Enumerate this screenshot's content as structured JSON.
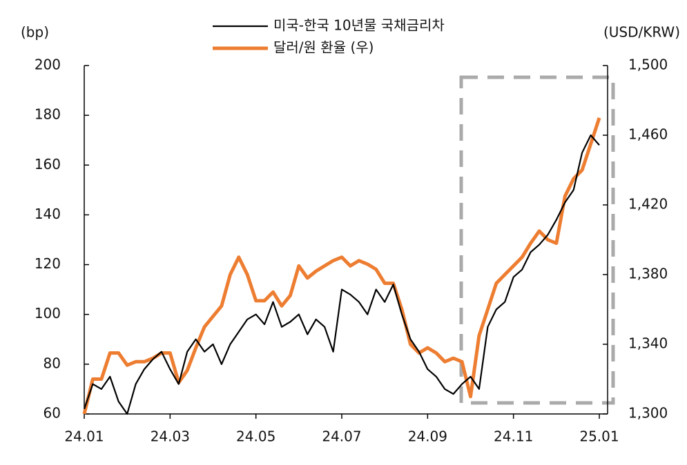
{
  "chart_data": {
    "type": "line",
    "y_label": "(bp)",
    "y2_label": "(USD/KRW)",
    "categories": [
      "24.01",
      null,
      null,
      null,
      null,
      null,
      null,
      null,
      null,
      null,
      "24.03",
      null,
      null,
      null,
      null,
      null,
      null,
      null,
      null,
      null,
      "24.05",
      null,
      null,
      null,
      null,
      null,
      null,
      null,
      null,
      null,
      "24.07",
      null,
      null,
      null,
      null,
      null,
      null,
      null,
      null,
      null,
      "24.09",
      null,
      null,
      null,
      null,
      null,
      null,
      null,
      null,
      null,
      "24.11",
      null,
      null,
      null,
      null,
      null,
      null,
      null,
      null,
      null,
      "25.01"
    ],
    "ylim": [
      60,
      200
    ],
    "yticks": [
      60,
      80,
      100,
      120,
      140,
      160,
      180,
      200
    ],
    "y2lim": [
      1300,
      1500
    ],
    "y2ticks": [
      {
        "value": 1300,
        "label": "1,300"
      },
      {
        "value": 1340,
        "label": "1,340"
      },
      {
        "value": 1380,
        "label": "1,380"
      },
      {
        "value": 1420,
        "label": "1,420"
      },
      {
        "value": 1460,
        "label": "1,460"
      },
      {
        "value": 1500,
        "label": "1,500"
      }
    ],
    "series": [
      {
        "name": "미국-한국 10년물 국채금리차",
        "color": "#000000",
        "values": [
          62,
          72,
          70,
          75,
          65,
          60,
          72,
          78,
          82,
          85,
          78,
          72,
          85,
          90,
          85,
          88,
          80,
          88,
          93,
          98,
          100,
          96,
          105,
          95,
          97,
          100,
          92,
          98,
          95,
          85,
          110,
          108,
          105,
          100,
          110,
          105,
          112,
          100,
          90,
          85,
          78,
          75,
          70,
          68,
          72,
          75,
          70,
          95,
          102,
          105,
          115,
          118,
          125,
          128,
          132,
          138,
          145,
          150,
          165,
          172,
          168
        ]
      },
      {
        "name": "달러/원 환율 (우)",
        "color": "#ed7d31",
        "axis": "y2",
        "values": [
          1300,
          1320,
          1320,
          1335,
          1335,
          1328,
          1330,
          1330,
          1332,
          1335,
          1335,
          1318,
          1325,
          1338,
          1350,
          1356,
          1362,
          1380,
          1390,
          1380,
          1365,
          1365,
          1370,
          1362,
          1368,
          1385,
          1378,
          1382,
          1385,
          1388,
          1390,
          1385,
          1388,
          1386,
          1383,
          1375,
          1375,
          1360,
          1340,
          1335,
          1338,
          1335,
          1330,
          1332,
          1330,
          1310,
          1345,
          1360,
          1375,
          1380,
          1385,
          1390,
          1398,
          1405,
          1400,
          1398,
          1425,
          1435,
          1440,
          1455,
          1470
        ]
      }
    ]
  }
}
